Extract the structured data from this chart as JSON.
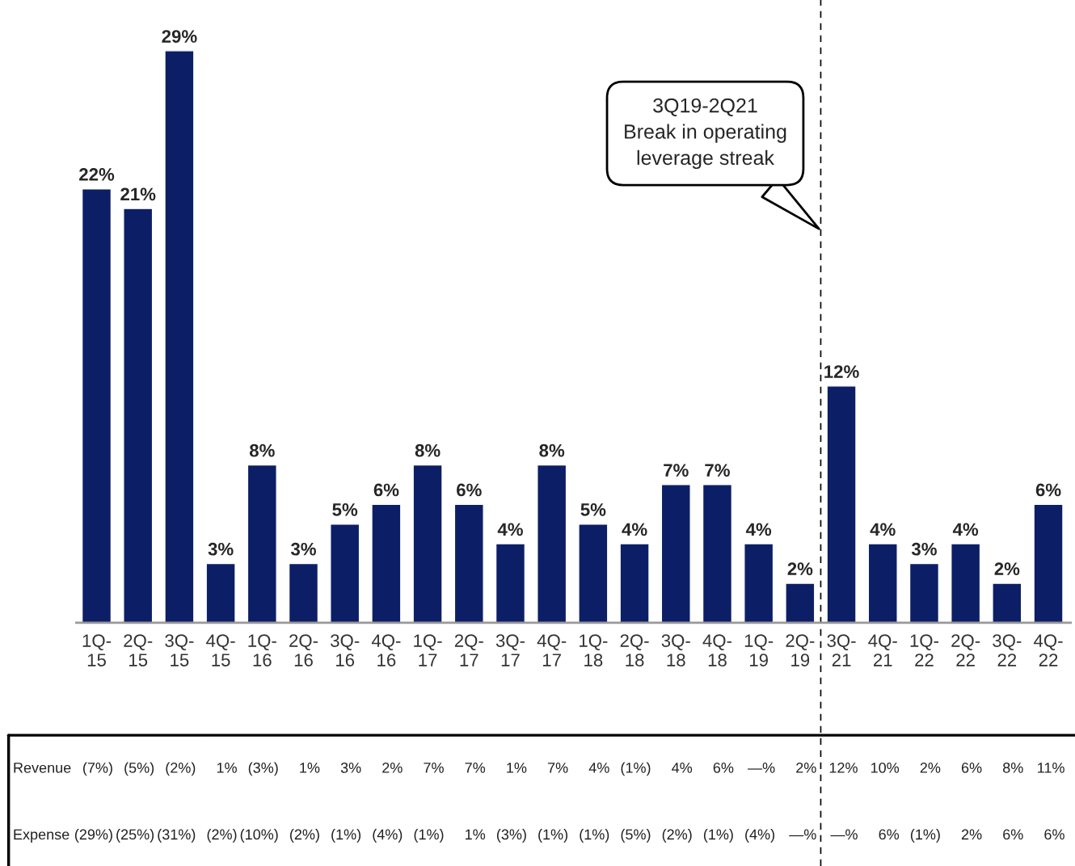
{
  "chart_data": {
    "type": "bar",
    "categories": [
      "1Q-15",
      "2Q-15",
      "3Q-15",
      "4Q-15",
      "1Q-16",
      "2Q-16",
      "3Q-16",
      "4Q-16",
      "1Q-17",
      "2Q-17",
      "3Q-17",
      "4Q-17",
      "1Q-18",
      "2Q-18",
      "3Q-18",
      "4Q-18",
      "1Q-19",
      "2Q-19",
      "3Q-21",
      "4Q-21",
      "1Q-22",
      "2Q-22",
      "3Q-22",
      "4Q-22"
    ],
    "values": [
      22,
      21,
      29,
      3,
      8,
      3,
      5,
      6,
      8,
      6,
      4,
      8,
      5,
      4,
      7,
      7,
      4,
      2,
      12,
      4,
      3,
      4,
      2,
      6
    ],
    "value_labels": [
      "22%",
      "21%",
      "29%",
      "3%",
      "8%",
      "3%",
      "5%",
      "6%",
      "8%",
      "6%",
      "4%",
      "8%",
      "5%",
      "4%",
      "7%",
      "7%",
      "4%",
      "2%",
      "12%",
      "4%",
      "3%",
      "4%",
      "2%",
      "6%"
    ],
    "color": "#0c1f66",
    "annotations": [
      "3Q19-2Q21\nBreak in operating\nleverage streak",
      "Revenue",
      "(7%)",
      "(5%)",
      "(2%)",
      "1%",
      "(3%)",
      "1%",
      "3%",
      "2%",
      "7%",
      "7%",
      "1%",
      "7%",
      "4%",
      "(1%)",
      "4%",
      "6%",
      "—%",
      "2%",
      "12%",
      "10%",
      "2%",
      "6%",
      "8%",
      "11%",
      "Expense",
      "(29%)",
      "(25%)",
      "(31%)",
      "(2%)",
      "(10%)",
      "(2%)",
      "(1%)",
      "(4%)",
      "(1%)",
      "1%",
      "(3%)",
      "(1%)",
      "(1%)",
      "(5%)",
      "(2%)",
      "(1%)",
      "(4%)",
      "—%",
      "—%",
      "6%",
      "(1%)",
      "2%",
      "6%",
      "6%"
    ],
    "grid": false,
    "legend": false
  }
}
